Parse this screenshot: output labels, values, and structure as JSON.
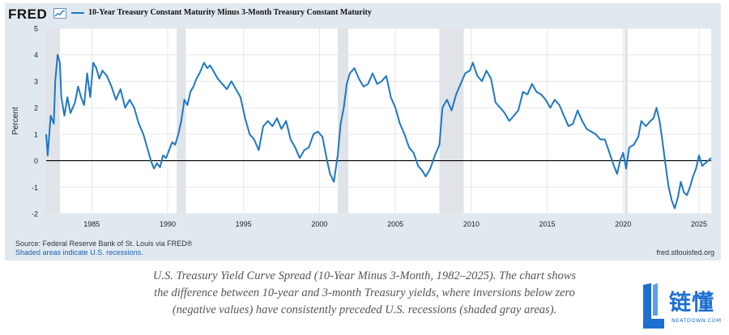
{
  "fred": {
    "logo": "FRED",
    "series_title": "10-Year Treasury Constant Maturity Minus 3-Month Treasury Constant Maturity",
    "source": "Source: Federal Reserve Bank of St. Louis via FRED®",
    "recession_note": "Shaded areas indicate U.S. recessions.",
    "url": "fred.stlouisfed.org"
  },
  "caption": {
    "line1": "U.S. Treasury Yield Curve Spread (10-Year Minus 3-Month, 1982–2025). The chart shows",
    "line2": "the difference between 10-year and 3-month Treasury yields, where inversions below zero",
    "line3": "(negative values) have consistently preceded U.S. recessions (shaded gray areas)."
  },
  "watermark": {
    "cn_text": "链懂",
    "en_text": "NEATDOWN.COM"
  },
  "colors": {
    "series": "#1f77c4",
    "panel": "#e1e9f0",
    "plot": "#ffffff",
    "recession": "#e0e3e8",
    "accent": "#1f6fd1"
  },
  "chart_data": {
    "type": "line",
    "title": "10-Year Treasury Constant Maturity Minus 3-Month Treasury Constant Maturity",
    "xlabel": "",
    "ylabel": "Percent",
    "xlim": [
      1982.0,
      2025.8
    ],
    "ylim": [
      -2,
      5
    ],
    "x_ticks": [
      1985,
      1990,
      1995,
      2000,
      2005,
      2010,
      2015,
      2020,
      2025
    ],
    "y_ticks": [
      -2,
      -1,
      0,
      1,
      2,
      3,
      4,
      5
    ],
    "grid": true,
    "zero_line": true,
    "recessions": [
      [
        1981.5,
        1982.9
      ],
      [
        1990.6,
        1991.2
      ],
      [
        2001.2,
        2001.9
      ],
      [
        2007.9,
        2009.5
      ],
      [
        2020.1,
        2020.3
      ]
    ],
    "series": [
      {
        "name": "10-Year Treasury Constant Maturity Minus 3-Month Treasury Constant Maturity",
        "points": [
          [
            1982.0,
            1.0
          ],
          [
            1982.1,
            0.2
          ],
          [
            1982.3,
            1.7
          ],
          [
            1982.5,
            1.4
          ],
          [
            1982.6,
            3.0
          ],
          [
            1982.75,
            4.0
          ],
          [
            1982.9,
            3.7
          ],
          [
            1983.0,
            2.4
          ],
          [
            1983.2,
            1.7
          ],
          [
            1983.4,
            2.4
          ],
          [
            1983.6,
            1.8
          ],
          [
            1983.9,
            2.2
          ],
          [
            1984.1,
            2.8
          ],
          [
            1984.3,
            2.4
          ],
          [
            1984.5,
            2.1
          ],
          [
            1984.7,
            3.3
          ],
          [
            1984.9,
            2.4
          ],
          [
            1985.1,
            3.7
          ],
          [
            1985.3,
            3.5
          ],
          [
            1985.5,
            3.1
          ],
          [
            1985.7,
            3.4
          ],
          [
            1986.0,
            3.2
          ],
          [
            1986.3,
            2.8
          ],
          [
            1986.6,
            2.3
          ],
          [
            1986.9,
            2.7
          ],
          [
            1987.2,
            2.0
          ],
          [
            1987.5,
            2.3
          ],
          [
            1987.8,
            2.0
          ],
          [
            1988.1,
            1.4
          ],
          [
            1988.4,
            1.0
          ],
          [
            1988.7,
            0.4
          ],
          [
            1988.9,
            0.0
          ],
          [
            1989.1,
            -0.3
          ],
          [
            1989.3,
            -0.1
          ],
          [
            1989.5,
            -0.25
          ],
          [
            1989.7,
            0.2
          ],
          [
            1989.9,
            0.1
          ],
          [
            1990.1,
            0.4
          ],
          [
            1990.3,
            0.7
          ],
          [
            1990.5,
            0.6
          ],
          [
            1990.7,
            1.0
          ],
          [
            1990.9,
            1.5
          ],
          [
            1991.1,
            2.3
          ],
          [
            1991.3,
            2.1
          ],
          [
            1991.5,
            2.6
          ],
          [
            1991.7,
            2.8
          ],
          [
            1991.9,
            3.1
          ],
          [
            1992.1,
            3.3
          ],
          [
            1992.4,
            3.7
          ],
          [
            1992.6,
            3.5
          ],
          [
            1992.8,
            3.6
          ],
          [
            1993.0,
            3.4
          ],
          [
            1993.3,
            3.1
          ],
          [
            1993.6,
            2.9
          ],
          [
            1993.9,
            2.7
          ],
          [
            1994.2,
            3.0
          ],
          [
            1994.5,
            2.7
          ],
          [
            1994.8,
            2.4
          ],
          [
            1995.1,
            1.6
          ],
          [
            1995.4,
            1.0
          ],
          [
            1995.7,
            0.8
          ],
          [
            1996.0,
            0.4
          ],
          [
            1996.3,
            1.3
          ],
          [
            1996.6,
            1.5
          ],
          [
            1996.9,
            1.3
          ],
          [
            1997.2,
            1.6
          ],
          [
            1997.5,
            1.2
          ],
          [
            1997.8,
            1.5
          ],
          [
            1998.1,
            0.8
          ],
          [
            1998.4,
            0.5
          ],
          [
            1998.7,
            0.1
          ],
          [
            1999.0,
            0.4
          ],
          [
            1999.3,
            0.5
          ],
          [
            1999.6,
            1.0
          ],
          [
            1999.9,
            1.1
          ],
          [
            2000.2,
            0.9
          ],
          [
            2000.5,
            0.0
          ],
          [
            2000.7,
            -0.5
          ],
          [
            2000.95,
            -0.8
          ],
          [
            2001.2,
            0.2
          ],
          [
            2001.4,
            1.4
          ],
          [
            2001.6,
            2.0
          ],
          [
            2001.8,
            2.9
          ],
          [
            2002.0,
            3.3
          ],
          [
            2002.3,
            3.5
          ],
          [
            2002.6,
            3.1
          ],
          [
            2002.9,
            2.8
          ],
          [
            2003.2,
            2.9
          ],
          [
            2003.5,
            3.3
          ],
          [
            2003.8,
            2.9
          ],
          [
            2004.1,
            3.0
          ],
          [
            2004.4,
            3.2
          ],
          [
            2004.7,
            2.4
          ],
          [
            2005.0,
            2.0
          ],
          [
            2005.3,
            1.4
          ],
          [
            2005.6,
            1.0
          ],
          [
            2005.9,
            0.5
          ],
          [
            2006.2,
            0.3
          ],
          [
            2006.5,
            -0.2
          ],
          [
            2006.8,
            -0.4
          ],
          [
            2007.0,
            -0.6
          ],
          [
            2007.3,
            -0.3
          ],
          [
            2007.6,
            0.2
          ],
          [
            2007.9,
            0.6
          ],
          [
            2008.1,
            2.0
          ],
          [
            2008.4,
            2.3
          ],
          [
            2008.7,
            1.9
          ],
          [
            2009.0,
            2.5
          ],
          [
            2009.3,
            2.9
          ],
          [
            2009.6,
            3.3
          ],
          [
            2009.9,
            3.4
          ],
          [
            2010.1,
            3.7
          ],
          [
            2010.4,
            3.2
          ],
          [
            2010.7,
            3.0
          ],
          [
            2011.0,
            3.4
          ],
          [
            2011.3,
            3.1
          ],
          [
            2011.6,
            2.2
          ],
          [
            2011.9,
            2.0
          ],
          [
            2012.2,
            1.8
          ],
          [
            2012.5,
            1.5
          ],
          [
            2012.8,
            1.7
          ],
          [
            2013.1,
            1.9
          ],
          [
            2013.4,
            2.6
          ],
          [
            2013.7,
            2.5
          ],
          [
            2014.0,
            2.9
          ],
          [
            2014.3,
            2.6
          ],
          [
            2014.6,
            2.5
          ],
          [
            2014.9,
            2.3
          ],
          [
            2015.2,
            2.0
          ],
          [
            2015.5,
            2.3
          ],
          [
            2015.8,
            2.1
          ],
          [
            2016.1,
            1.7
          ],
          [
            2016.4,
            1.3
          ],
          [
            2016.7,
            1.4
          ],
          [
            2017.0,
            1.9
          ],
          [
            2017.3,
            1.5
          ],
          [
            2017.6,
            1.2
          ],
          [
            2017.9,
            1.1
          ],
          [
            2018.2,
            1.0
          ],
          [
            2018.5,
            0.8
          ],
          [
            2018.8,
            0.8
          ],
          [
            2019.1,
            0.3
          ],
          [
            2019.4,
            -0.2
          ],
          [
            2019.6,
            -0.5
          ],
          [
            2019.8,
            0.0
          ],
          [
            2020.0,
            0.3
          ],
          [
            2020.2,
            -0.3
          ],
          [
            2020.4,
            0.5
          ],
          [
            2020.7,
            0.6
          ],
          [
            2021.0,
            0.9
          ],
          [
            2021.2,
            1.5
          ],
          [
            2021.5,
            1.3
          ],
          [
            2021.8,
            1.5
          ],
          [
            2022.0,
            1.6
          ],
          [
            2022.2,
            2.0
          ],
          [
            2022.4,
            1.5
          ],
          [
            2022.6,
            0.7
          ],
          [
            2022.8,
            -0.2
          ],
          [
            2023.0,
            -1.0
          ],
          [
            2023.2,
            -1.5
          ],
          [
            2023.4,
            -1.8
          ],
          [
            2023.6,
            -1.4
          ],
          [
            2023.8,
            -0.8
          ],
          [
            2024.0,
            -1.2
          ],
          [
            2024.2,
            -1.3
          ],
          [
            2024.4,
            -1.0
          ],
          [
            2024.6,
            -0.6
          ],
          [
            2024.8,
            -0.3
          ],
          [
            2025.0,
            0.2
          ],
          [
            2025.2,
            -0.2
          ],
          [
            2025.4,
            -0.1
          ],
          [
            2025.6,
            0.0
          ],
          [
            2025.8,
            0.1
          ]
        ]
      }
    ]
  }
}
